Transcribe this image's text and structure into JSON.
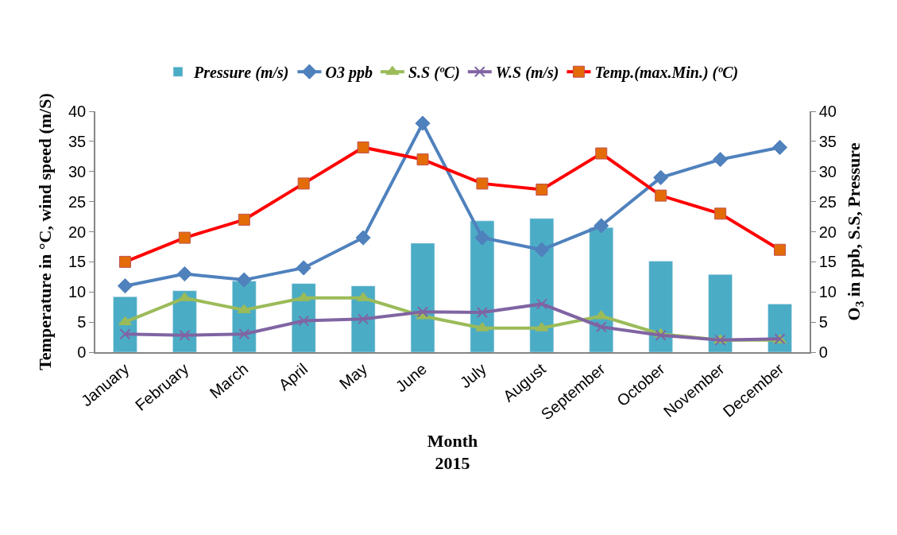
{
  "chart_data": {
    "type": "line",
    "categories": [
      "January",
      "February",
      "March",
      "April",
      "May",
      "June",
      "July",
      "August",
      "September",
      "October",
      "November",
      "December"
    ],
    "xlabel": "Month\n2015",
    "ylabel": "Temperature in °C, wind speed (m/S)",
    "y2label": "O$_{3}$ in ppb, S.S, Pressure",
    "ylim": [
      0,
      40
    ],
    "yticks": [
      0,
      5,
      10,
      15,
      20,
      25,
      30,
      35,
      40
    ],
    "y2lim": [
      0,
      40
    ],
    "y2ticks": [
      0,
      5,
      10,
      15,
      20,
      25,
      30,
      35,
      40
    ],
    "legend": "top",
    "series": [
      {
        "name": "Pressure (m/s)",
        "type": "bar",
        "axis": "y2",
        "color": "#4bacc6",
        "values": [
          9.2,
          10.2,
          11.8,
          11.4,
          11.0,
          18.1,
          21.8,
          22.2,
          20.7,
          15.1,
          12.9,
          8.0
        ]
      },
      {
        "name": "O3 ppb",
        "axis": "y2",
        "marker": "diamond",
        "color": "#4f81bd",
        "line_style": "solid",
        "values": [
          11,
          13,
          12,
          14,
          19,
          38,
          19,
          17,
          21,
          29,
          32,
          34
        ]
      },
      {
        "name": "S.S (ºC)",
        "axis": "y2",
        "marker": "triangle",
        "color": "#9bbb59",
        "values": [
          5,
          9,
          7,
          9,
          9,
          6,
          4,
          4,
          6,
          3,
          2,
          2
        ]
      },
      {
        "name": "W.S (m/s)",
        "axis": "y",
        "marker": "cross",
        "color": "#8064a2",
        "values": [
          3,
          2.8,
          3,
          5.2,
          5.5,
          6.7,
          6.6,
          8,
          4.2,
          2.8,
          2,
          2.2
        ]
      },
      {
        "name": "Temp.(max.Min.) (ºC)",
        "axis": "y",
        "marker": "square",
        "color": "#ff0000",
        "values": [
          15,
          19,
          22,
          28,
          34,
          32,
          28,
          27,
          33,
          26,
          23,
          17
        ]
      }
    ]
  }
}
